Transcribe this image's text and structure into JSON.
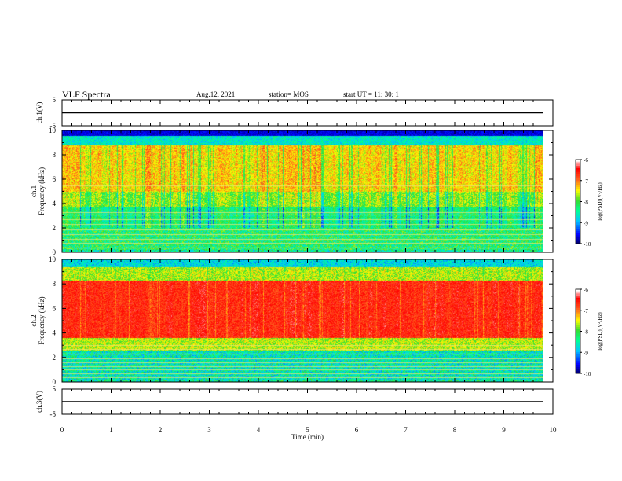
{
  "header": {
    "title": "VLF Spectra",
    "date": "Aug.12, 2021",
    "station": "station= MOS",
    "start": "start  UT =   11: 30: 1"
  },
  "chart_data": [
    {
      "type": "line",
      "name": "ch1-voltage",
      "ylabel": "ch.1(V)",
      "ylim": [
        -5,
        5
      ],
      "yticks": [
        "5",
        "-5"
      ],
      "xlim": [
        0,
        10
      ],
      "x": [
        0,
        9.8
      ],
      "values": [
        0,
        0
      ]
    },
    {
      "type": "heatmap",
      "name": "ch1-spectrogram",
      "ylabel": "ch.1\nFrequency (kHz)",
      "ylim": [
        0,
        10
      ],
      "yticks": [
        "0",
        "2",
        "4",
        "6",
        "8",
        "10"
      ],
      "xlim": [
        0,
        10
      ],
      "data_end_min": 9.8,
      "colorbar": {
        "label": "log(PSD)(V²/Hz)",
        "range": [
          -10,
          -6
        ],
        "ticks": [
          "-6",
          "-7",
          "-8",
          "-9",
          "-10"
        ]
      }
    },
    {
      "type": "heatmap",
      "name": "ch2-spectrogram",
      "ylabel": "ch.2\nFrequency (kHz)",
      "ylim": [
        0,
        10
      ],
      "yticks": [
        "0",
        "2",
        "4",
        "6",
        "8",
        "10"
      ],
      "xlim": [
        0,
        10
      ],
      "data_end_min": 9.8,
      "colorbar": {
        "label": "log(PSD)(V²/Hz)",
        "range": [
          -10,
          -6
        ],
        "ticks": [
          "-6",
          "-7",
          "-8",
          "-9",
          "-10"
        ]
      }
    },
    {
      "type": "line",
      "name": "ch3-voltage",
      "ylabel": "ch.3(V)",
      "ylim": [
        -5,
        5
      ],
      "yticks": [
        "5",
        "-5"
      ],
      "xlim": [
        0,
        10
      ],
      "x": [
        0,
        9.8
      ],
      "values": [
        0,
        0
      ]
    }
  ],
  "xaxis": {
    "label": "Time  (min)",
    "ticks": [
      "0",
      "1",
      "2",
      "3",
      "4",
      "5",
      "6",
      "7",
      "8",
      "9",
      "10"
    ]
  },
  "colors": {
    "colormap": [
      "#00005a",
      "#0000ff",
      "#00c8ff",
      "#00ff96",
      "#32dc32",
      "#ffff00",
      "#ff5a1e",
      "#ff0000",
      "#ffffff"
    ]
  }
}
